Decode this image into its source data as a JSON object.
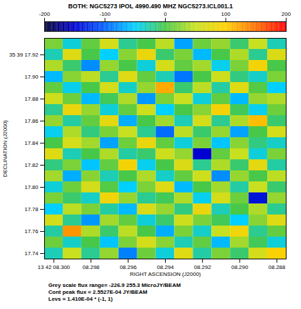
{
  "chart_data": {
    "type": "heatmap",
    "title": "BOTH: NGC5273 IPOL 4990.490 MHZ NGC5273.ICL001.1",
    "x_label": "RIGHT ASCENSION (J2000)",
    "y_label": "DECLINATION (J2000)",
    "x": [
      8.3,
      8.299,
      8.298,
      8.297,
      8.296,
      8.295,
      8.294,
      8.293,
      8.292,
      8.291,
      8.29,
      8.289,
      8.288
    ],
    "y": [
      17.93,
      17.92,
      17.91,
      17.9,
      17.89,
      17.88,
      17.87,
      17.86,
      17.85,
      17.84,
      17.83,
      17.82,
      17.81,
      17.8,
      17.79,
      17.78,
      17.77,
      17.76,
      17.75,
      17.74
    ],
    "values": [
      [
        20,
        -40,
        10,
        60,
        -20,
        0,
        45,
        -70,
        15,
        30,
        -10,
        50,
        -30
      ],
      [
        -30,
        70,
        0,
        -50,
        25,
        80,
        -10,
        20,
        -60,
        0,
        40,
        -20,
        65
      ],
      [
        40,
        -10,
        -80,
        30,
        0,
        -40,
        60,
        10,
        35,
        -45,
        20,
        90,
        0
      ],
      [
        -60,
        25,
        45,
        -20,
        70,
        10,
        -30,
        -90,
        0,
        55,
        -15,
        -35,
        20
      ],
      [
        10,
        -45,
        0,
        60,
        -35,
        30,
        120,
        -10,
        45,
        -25,
        70,
        5,
        -50
      ],
      [
        55,
        15,
        -60,
        -5,
        40,
        -75,
        20,
        50,
        -40,
        10,
        -60,
        30,
        40
      ],
      [
        -20,
        80,
        30,
        -40,
        10,
        55,
        -50,
        0,
        25,
        90,
        -5,
        -45,
        15
      ],
      [
        30,
        -25,
        10,
        75,
        -65,
        0,
        35,
        -30,
        60,
        -20,
        40,
        110,
        -10
      ],
      [
        -45,
        40,
        -15,
        20,
        50,
        -20,
        -95,
        45,
        -10,
        30,
        -70,
        0,
        60
      ],
      [
        0,
        60,
        35,
        -70,
        15,
        80,
        10,
        -40,
        20,
        -55,
        25,
        -15,
        -35
      ],
      [
        70,
        -30,
        0,
        40,
        -25,
        -10,
        55,
        30,
        -150,
        10,
        50,
        -40,
        20
      ],
      [
        -15,
        20,
        -55,
        10,
        90,
        -45,
        0,
        65,
        -20,
        40,
        -10,
        75,
        -25
      ],
      [
        35,
        -65,
        25,
        -30,
        0,
        40,
        -35,
        10,
        55,
        -80,
        30,
        0,
        45
      ],
      [
        -40,
        15,
        60,
        5,
        -50,
        20,
        70,
        -60,
        0,
        35,
        -25,
        50,
        -10
      ],
      [
        20,
        -10,
        -35,
        85,
        30,
        -20,
        -5,
        40,
        -45,
        60,
        15,
        -140,
        30
      ],
      [
        -50,
        45,
        20,
        -25,
        -60,
        65,
        30,
        -15,
        80,
        -30,
        0,
        40,
        -20
      ],
      [
        60,
        -20,
        -75,
        35,
        10,
        -40,
        -10,
        55,
        20,
        -5,
        -50,
        25,
        70
      ],
      [
        -25,
        130,
        40,
        -10,
        45,
        0,
        -65,
        20,
        -35,
        50,
        85,
        -20,
        10
      ],
      [
        15,
        -35,
        0,
        -55,
        20,
        60,
        25,
        -30,
        10,
        -60,
        35,
        -5,
        -40
      ],
      [
        -30,
        50,
        -20,
        30,
        -85,
        15,
        -40,
        70,
        -25,
        20,
        -10,
        60,
        95
      ]
    ],
    "xlim": [
      8.3005,
      8.2875
    ],
    "ylim": [
      17.735,
      17.935
    ],
    "xticks": [
      {
        "value": 8.3,
        "label": "13 42 08.300"
      },
      {
        "value": 8.298,
        "label": "08.298"
      },
      {
        "value": 8.296,
        "label": "08.296"
      },
      {
        "value": 8.294,
        "label": "08.294"
      },
      {
        "value": 8.292,
        "label": "08.292"
      },
      {
        "value": 8.29,
        "label": "08.290"
      },
      {
        "value": 8.288,
        "label": "08.288"
      }
    ],
    "yticks": [
      {
        "value": 17.92,
        "label": "35 39 17.92"
      },
      {
        "value": 17.9,
        "label": "17.90"
      },
      17.88,
      17.86,
      17.84,
      17.82,
      {
        "value": 17.8,
        "label": "17.80"
      },
      17.78,
      17.76,
      17.74
    ],
    "colorbar": {
      "range": [
        -200,
        200
      ],
      "ticks": [
        -200,
        -100,
        0,
        100,
        200
      ]
    },
    "annotations": [
      "Grey scale flux range= -226.9 255.3 MicroJY/BEAM",
      "Cont peak flux = 2.5527E-04 JY/BEAM",
      "Levs = 1.410E-04 * (-1, 1)"
    ]
  }
}
